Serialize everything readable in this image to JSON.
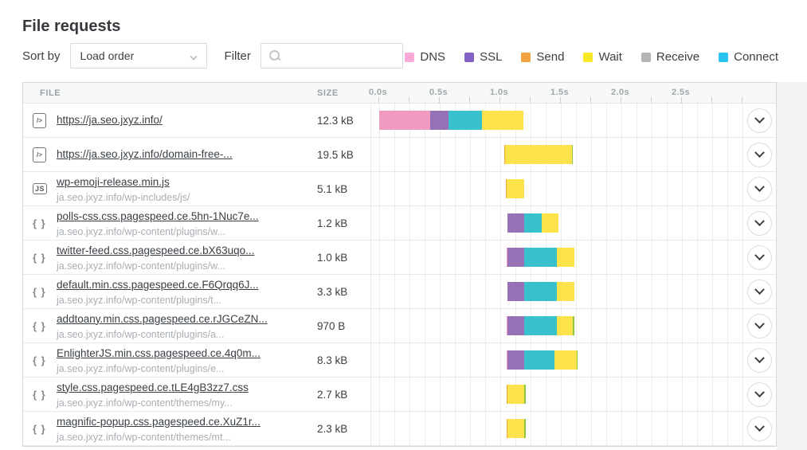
{
  "title": "File requests",
  "controls": {
    "sort_by_label": "Sort by",
    "sort_by_value": "Load order",
    "filter_label": "Filter",
    "filter_placeholder": ""
  },
  "legend": [
    {
      "label": "DNS",
      "color": "#f8a9da"
    },
    {
      "label": "SSL",
      "color": "#8561c5"
    },
    {
      "label": "Send",
      "color": "#f0a23c"
    },
    {
      "label": "Wait",
      "color": "#f8e927"
    },
    {
      "label": "Receive",
      "color": "#b4b4b4"
    },
    {
      "label": "Connect",
      "color": "#29c3f0"
    }
  ],
  "table": {
    "file_header": "FILE",
    "size_header": "SIZE"
  },
  "chart_data": {
    "type": "waterfall",
    "time_axis": {
      "unit": "s",
      "labels": [
        "0.0s",
        "0.5s",
        "1.0s",
        "1.5s",
        "2.0s",
        "2.5s"
      ],
      "label_interval_s": 0.5,
      "minor_tick_s": 0.25,
      "grid_interval_s": 0.125,
      "range_s": [
        0,
        3.0
      ]
    },
    "phase_colors": {
      "dns": "#f09ac0",
      "ssl": "#9671b5",
      "send": "#f0a23c",
      "wait": "#fce24b",
      "receive": "#b4b4b4",
      "connect": "#39c0cd",
      "marker": "#8dc63f"
    },
    "rows": [
      {
        "icon": "html",
        "file": "https://ja.seo.jxyz.info/",
        "path": "",
        "size": "12.3 kB",
        "segments": [
          {
            "phase": "dns",
            "start": 0.0,
            "end": 0.42
          },
          {
            "phase": "ssl",
            "start": 0.42,
            "end": 0.57
          },
          {
            "phase": "connect",
            "start": 0.57,
            "end": 0.85
          },
          {
            "phase": "wait",
            "start": 0.85,
            "end": 1.19
          }
        ]
      },
      {
        "icon": "html",
        "file": "https://ja.seo.jxyz.info/domain-free-...",
        "path": "",
        "size": "19.5 kB",
        "segments": [
          {
            "phase": "send",
            "start": 1.03,
            "end": 1.04
          },
          {
            "phase": "wait",
            "start": 1.04,
            "end": 1.59
          },
          {
            "phase": "marker",
            "start": 1.59,
            "end": 1.6
          }
        ]
      },
      {
        "icon": "js",
        "file": "wp-emoji-release.min.js",
        "path": "ja.seo.jxyz.info/wp-includes/js/",
        "size": "5.1 kB",
        "segments": [
          {
            "phase": "send",
            "start": 1.045,
            "end": 1.055
          },
          {
            "phase": "wait",
            "start": 1.055,
            "end": 1.2
          }
        ]
      },
      {
        "icon": "css",
        "file": "polls-css.css.pagespeed.ce.5hn-1Nuc7e...",
        "path": "ja.seo.jxyz.info/wp-content/plugins/w...",
        "size": "1.2 kB",
        "segments": [
          {
            "phase": "ssl",
            "start": 1.06,
            "end": 1.2
          },
          {
            "phase": "connect",
            "start": 1.2,
            "end": 1.34
          },
          {
            "phase": "wait",
            "start": 1.34,
            "end": 1.48
          }
        ]
      },
      {
        "icon": "css",
        "file": "twitter-feed.css.pagespeed.ce.bX63uqo...",
        "path": "ja.seo.jxyz.info/wp-content/plugins/w...",
        "size": "1.0 kB",
        "segments": [
          {
            "phase": "dns",
            "start": 1.05,
            "end": 1.06
          },
          {
            "phase": "ssl",
            "start": 1.06,
            "end": 1.2
          },
          {
            "phase": "connect",
            "start": 1.2,
            "end": 1.47
          },
          {
            "phase": "wait",
            "start": 1.47,
            "end": 1.61
          }
        ]
      },
      {
        "icon": "css",
        "file": "default.min.css.pagespeed.ce.F6Qrqq6J...",
        "path": "ja.seo.jxyz.info/wp-content/plugins/t...",
        "size": "3.3 kB",
        "segments": [
          {
            "phase": "ssl",
            "start": 1.06,
            "end": 1.2
          },
          {
            "phase": "connect",
            "start": 1.2,
            "end": 1.47
          },
          {
            "phase": "wait",
            "start": 1.47,
            "end": 1.61
          }
        ]
      },
      {
        "icon": "css",
        "file": "addtoany.min.css.pagespeed.ce.rJGCeZN...",
        "path": "ja.seo.jxyz.info/wp-content/plugins/a...",
        "size": "970 B",
        "segments": [
          {
            "phase": "dns",
            "start": 1.05,
            "end": 1.06
          },
          {
            "phase": "ssl",
            "start": 1.06,
            "end": 1.2
          },
          {
            "phase": "connect",
            "start": 1.2,
            "end": 1.47
          },
          {
            "phase": "wait",
            "start": 1.47,
            "end": 1.6
          },
          {
            "phase": "marker",
            "start": 1.6,
            "end": 1.61
          }
        ]
      },
      {
        "icon": "css",
        "file": "EnlighterJS.min.css.pagespeed.ce.4q0m...",
        "path": "ja.seo.jxyz.info/wp-content/plugins/e...",
        "size": "8.3 kB",
        "segments": [
          {
            "phase": "dns",
            "start": 1.05,
            "end": 1.06
          },
          {
            "phase": "ssl",
            "start": 1.06,
            "end": 1.2
          },
          {
            "phase": "connect",
            "start": 1.2,
            "end": 1.45
          },
          {
            "phase": "wait",
            "start": 1.45,
            "end": 1.63
          },
          {
            "phase": "marker",
            "start": 1.63,
            "end": 1.64
          }
        ]
      },
      {
        "icon": "css",
        "file": "style.css.pagespeed.ce.tLE4gB3zz7.css",
        "path": "ja.seo.jxyz.info/wp-content/themes/my...",
        "size": "2.7 kB",
        "segments": [
          {
            "phase": "send",
            "start": 1.05,
            "end": 1.06
          },
          {
            "phase": "wait",
            "start": 1.06,
            "end": 1.2
          },
          {
            "phase": "marker",
            "start": 1.2,
            "end": 1.21
          }
        ]
      },
      {
        "icon": "css",
        "file": "magnific-popup.css.pagespeed.ce.XuZ1r...",
        "path": "ja.seo.jxyz.info/wp-content/themes/mt...",
        "size": "2.3 kB",
        "segments": [
          {
            "phase": "send",
            "start": 1.05,
            "end": 1.06
          },
          {
            "phase": "wait",
            "start": 1.06,
            "end": 1.2
          },
          {
            "phase": "marker",
            "start": 1.2,
            "end": 1.21
          }
        ]
      }
    ]
  }
}
